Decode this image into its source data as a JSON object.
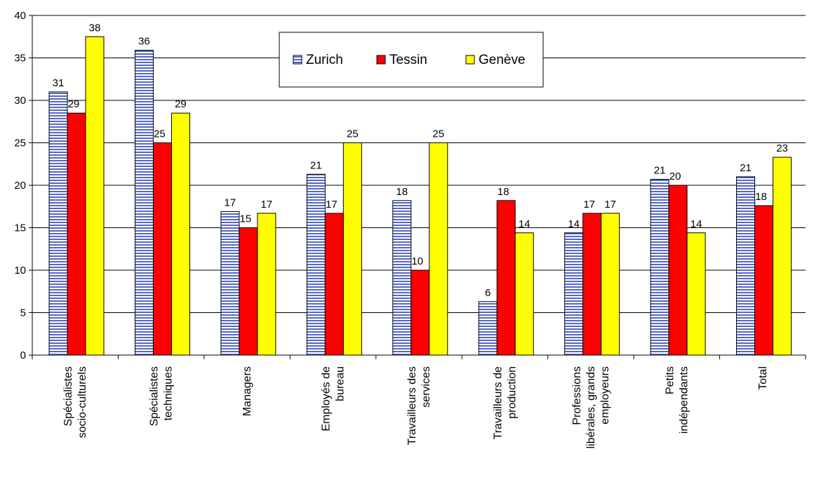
{
  "chart_data": {
    "type": "bar",
    "categories": [
      [
        "Spécialistes",
        "socio-culturels"
      ],
      [
        "Spécialistes",
        "techniques"
      ],
      [
        "Managers"
      ],
      [
        "Employés de",
        "bureau"
      ],
      [
        "Travailleurs des",
        "services"
      ],
      [
        "Travailleurs de",
        "production"
      ],
      [
        "Professions",
        "libérales, grands",
        "employeurs"
      ],
      [
        "Petits",
        "indépendants"
      ],
      [
        "Total"
      ]
    ],
    "series": [
      {
        "name": "Zurich",
        "color": "#c8d0ec",
        "pattern": "horizontal-stripes-blue",
        "values": [
          31,
          35.9,
          16.9,
          21.3,
          18.2,
          6.3,
          14.4,
          20.7,
          21
        ],
        "labels": [
          "31",
          "36",
          "17",
          "21",
          "18",
          "6",
          "14",
          "21",
          "21"
        ]
      },
      {
        "name": "Tessin",
        "color": "#ff0000",
        "values": [
          28.5,
          25,
          15,
          16.7,
          10,
          18.2,
          16.7,
          20,
          17.6
        ],
        "labels": [
          "29",
          "25",
          "15",
          "17",
          "10",
          "18",
          "17",
          "20",
          "18"
        ]
      },
      {
        "name": "Genève",
        "color": "#ffff00",
        "values": [
          37.5,
          28.5,
          16.7,
          25,
          25,
          14.4,
          16.7,
          14.4,
          23.3
        ],
        "labels": [
          "38",
          "29",
          "17",
          "25",
          "25",
          "14",
          "17",
          "14",
          "23"
        ]
      }
    ],
    "yticks": [
      "0",
      "5",
      "10",
      "15",
      "20",
      "25",
      "30",
      "35",
      "40"
    ],
    "ylim": [
      0,
      40
    ],
    "legend_position": "top-center",
    "grid": true
  }
}
